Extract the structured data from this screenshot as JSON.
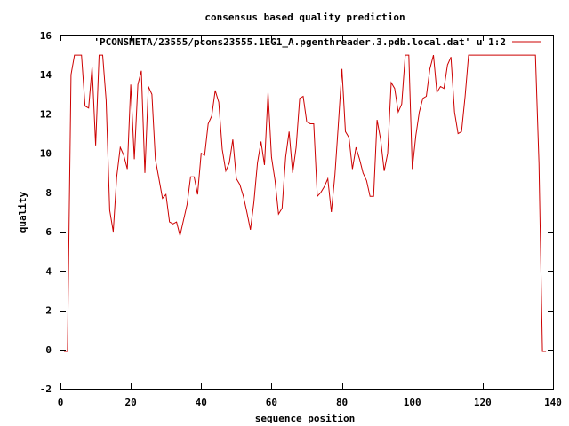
{
  "chart_data": {
    "type": "line",
    "title": "consensus based quality prediction",
    "xlabel": "sequence position",
    "ylabel": "quality",
    "xlim": [
      0,
      140
    ],
    "ylim": [
      -2,
      16
    ],
    "xticks": [
      0,
      20,
      40,
      60,
      80,
      100,
      120,
      140
    ],
    "yticks": [
      -2,
      0,
      2,
      4,
      6,
      8,
      10,
      12,
      14,
      16
    ],
    "grid": false,
    "legend_position": "top-right",
    "series": [
      {
        "name": "'PCONSMETA/23555/pcons23555.1EG1_A.pgenthreader.3.pdb.local.dat' u 1:2",
        "color": "#cc0000",
        "points": [
          [
            1,
            -0.1
          ],
          [
            2,
            -0.1
          ],
          [
            3,
            14.0
          ],
          [
            4,
            15.0
          ],
          [
            5,
            15.0
          ],
          [
            6,
            15.0
          ],
          [
            7,
            12.4
          ],
          [
            8,
            12.3
          ],
          [
            9,
            14.4
          ],
          [
            10,
            10.4
          ],
          [
            11,
            15.0
          ],
          [
            12,
            15.0
          ],
          [
            13,
            12.7
          ],
          [
            14,
            7.1
          ],
          [
            15,
            6.0
          ],
          [
            16,
            8.8
          ],
          [
            17,
            10.3
          ],
          [
            18,
            9.9
          ],
          [
            19,
            9.2
          ],
          [
            20,
            13.5
          ],
          [
            21,
            9.7
          ],
          [
            22,
            13.5
          ],
          [
            23,
            14.2
          ],
          [
            24,
            9.0
          ],
          [
            25,
            13.4
          ],
          [
            26,
            13.0
          ],
          [
            27,
            9.7
          ],
          [
            28,
            8.7
          ],
          [
            29,
            7.7
          ],
          [
            30,
            7.9
          ],
          [
            31,
            6.5
          ],
          [
            32,
            6.4
          ],
          [
            33,
            6.5
          ],
          [
            34,
            5.8
          ],
          [
            35,
            6.6
          ],
          [
            36,
            7.4
          ],
          [
            37,
            8.8
          ],
          [
            38,
            8.8
          ],
          [
            39,
            7.9
          ],
          [
            40,
            10.0
          ],
          [
            41,
            9.9
          ],
          [
            42,
            11.5
          ],
          [
            43,
            11.9
          ],
          [
            44,
            13.2
          ],
          [
            45,
            12.6
          ],
          [
            46,
            10.2
          ],
          [
            47,
            9.1
          ],
          [
            48,
            9.5
          ],
          [
            49,
            10.7
          ],
          [
            50,
            8.7
          ],
          [
            51,
            8.4
          ],
          [
            52,
            7.8
          ],
          [
            53,
            7.0
          ],
          [
            54,
            6.1
          ],
          [
            55,
            7.5
          ],
          [
            56,
            9.5
          ],
          [
            57,
            10.6
          ],
          [
            58,
            9.4
          ],
          [
            59,
            13.1
          ],
          [
            60,
            9.8
          ],
          [
            61,
            8.6
          ],
          [
            62,
            6.9
          ],
          [
            63,
            7.2
          ],
          [
            64,
            9.8
          ],
          [
            65,
            11.1
          ],
          [
            66,
            9.0
          ],
          [
            67,
            10.3
          ],
          [
            68,
            12.8
          ],
          [
            69,
            12.9
          ],
          [
            70,
            11.6
          ],
          [
            71,
            11.5
          ],
          [
            72,
            11.5
          ],
          [
            73,
            7.8
          ],
          [
            74,
            8.0
          ],
          [
            75,
            8.3
          ],
          [
            76,
            8.7
          ],
          [
            77,
            7.0
          ],
          [
            78,
            8.9
          ],
          [
            79,
            11.5
          ],
          [
            80,
            14.3
          ],
          [
            81,
            11.1
          ],
          [
            82,
            10.8
          ],
          [
            83,
            9.2
          ],
          [
            84,
            10.3
          ],
          [
            85,
            9.7
          ],
          [
            86,
            9.0
          ],
          [
            87,
            8.6
          ],
          [
            88,
            7.8
          ],
          [
            89,
            7.8
          ],
          [
            90,
            11.7
          ],
          [
            91,
            10.7
          ],
          [
            92,
            9.1
          ],
          [
            93,
            10.0
          ],
          [
            94,
            13.6
          ],
          [
            95,
            13.3
          ],
          [
            96,
            12.1
          ],
          [
            97,
            12.5
          ],
          [
            98,
            15.0
          ],
          [
            99,
            15.0
          ],
          [
            100,
            9.2
          ],
          [
            101,
            10.9
          ],
          [
            102,
            12.1
          ],
          [
            103,
            12.8
          ],
          [
            104,
            12.9
          ],
          [
            105,
            14.3
          ],
          [
            106,
            15.0
          ],
          [
            107,
            13.1
          ],
          [
            108,
            13.4
          ],
          [
            109,
            13.3
          ],
          [
            110,
            14.5
          ],
          [
            111,
            14.9
          ],
          [
            112,
            12.1
          ],
          [
            113,
            11.0
          ],
          [
            114,
            11.1
          ],
          [
            115,
            12.9
          ],
          [
            116,
            15.0
          ],
          [
            117,
            15.0
          ],
          [
            118,
            15.0
          ],
          [
            119,
            15.0
          ],
          [
            120,
            15.0
          ],
          [
            121,
            15.0
          ],
          [
            122,
            15.0
          ],
          [
            123,
            15.0
          ],
          [
            124,
            15.0
          ],
          [
            125,
            15.0
          ],
          [
            126,
            15.0
          ],
          [
            127,
            15.0
          ],
          [
            128,
            15.0
          ],
          [
            129,
            15.0
          ],
          [
            130,
            15.0
          ],
          [
            131,
            15.0
          ],
          [
            132,
            15.0
          ],
          [
            133,
            15.0
          ],
          [
            134,
            15.0
          ],
          [
            135,
            15.0
          ],
          [
            136,
            9.5
          ],
          [
            137,
            -0.1
          ],
          [
            138,
            -0.1
          ]
        ]
      }
    ]
  }
}
